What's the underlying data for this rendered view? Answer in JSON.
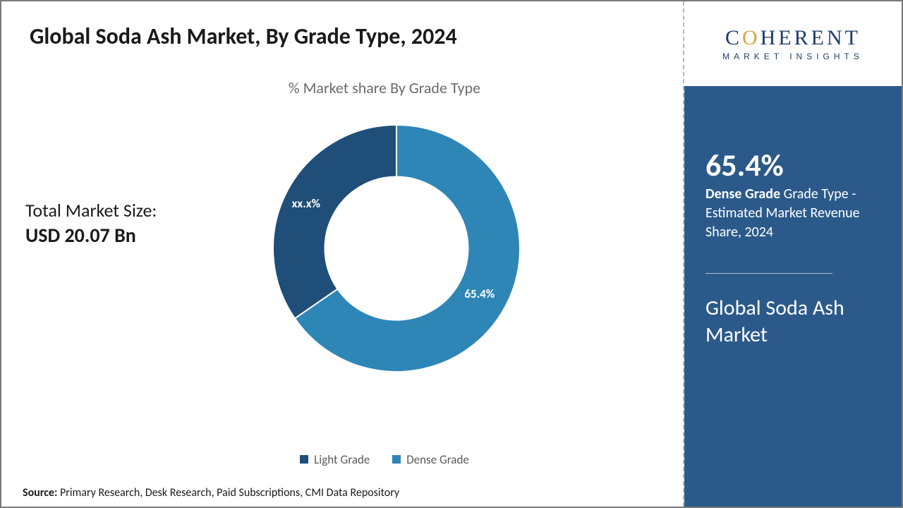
{
  "title": "Global Soda Ash Market, By Grade Type, 2024",
  "chart": {
    "type": "donut",
    "title": "% Market share By Grade Type",
    "inner_radius_ratio": 0.58,
    "background_color": "#ffffff",
    "series": [
      {
        "name": "Dense Grade",
        "value": 65.4,
        "color": "#2e86b7",
        "label": "65.4%"
      },
      {
        "name": "Light Grade",
        "value": 34.6,
        "color": "#1f4e79",
        "label": "xx.x%"
      }
    ],
    "legend_items": [
      {
        "name": "Light Grade",
        "color": "#1f4e79"
      },
      {
        "name": "Dense Grade",
        "color": "#2e86b7"
      }
    ],
    "label_fontsize": 17,
    "label_color": "#ffffff"
  },
  "market_size": {
    "label": "Total Market Size:",
    "value": "USD 20.07 Bn"
  },
  "source": {
    "label": "Source:",
    "text": "Primary Research, Desk Research, Paid Subscriptions, CMI Data Repository"
  },
  "logo": {
    "main_pre": "C",
    "main_o": "O",
    "main_post": "HERENT",
    "sub": "MARKET INSIGHTS",
    "main_color": "#1d3d6b",
    "o_color": "#d2a73b"
  },
  "side": {
    "pct": "65.4%",
    "desc_bold": "Dense Grade",
    "desc_rest": " Grade Type - Estimated Market Revenue Share, 2024",
    "title": "Global Soda Ash Market",
    "bg_color": "#2b5a8a"
  }
}
